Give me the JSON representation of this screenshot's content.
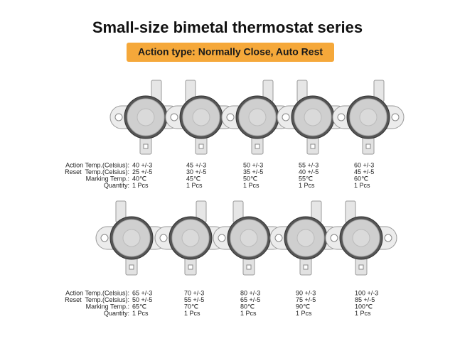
{
  "title": "Small-size bimetal thermostat series",
  "badge": "Action type: Normally Close, Auto Rest",
  "rows": [
    {
      "labels": [
        "Action Temp.(Celsius):",
        "Reset  Temp.(Celsius):",
        "Marking Temp.:",
        "Quantity:"
      ],
      "items": [
        {
          "action": "40 +/-3",
          "reset": "25 +/-5",
          "marking": "40℃",
          "quantity": "1 Pcs"
        },
        {
          "action": "45 +/-3",
          "reset": "30 +/-5",
          "marking": "45℃",
          "quantity": "1 Pcs"
        },
        {
          "action": "50 +/-3",
          "reset": "35 +/-5",
          "marking": "50℃",
          "quantity": "1 Pcs"
        },
        {
          "action": "55 +/-3",
          "reset": "40 +/-5",
          "marking": "55℃",
          "quantity": "1 Pcs"
        },
        {
          "action": "60 +/-3",
          "reset": "45 +/-5",
          "marking": "60℃",
          "quantity": "1 Pcs"
        }
      ]
    },
    {
      "labels": [
        "Action Temp.(Celsius):",
        "Reset  Temp.(Celsius):",
        "Marking Temp.:",
        "Quantity:"
      ],
      "items": [
        {
          "action": "65 +/-3",
          "reset": "50 +/-5",
          "marking": "65℃",
          "quantity": "1 Pcs"
        },
        {
          "action": "70 +/-3",
          "reset": "55 +/-5",
          "marking": "70℃",
          "quantity": "1 Pcs"
        },
        {
          "action": "80 +/-3",
          "reset": "65 +/-5",
          "marking": "80℃",
          "quantity": "1 Pcs"
        },
        {
          "action": "90 +/-3",
          "reset": "75 +/-5",
          "marking": "90℃",
          "quantity": "1 Pcs"
        },
        {
          "action": "100 +/-3",
          "reset": "85 +/-5",
          "marking": "100℃",
          "quantity": "1 Pcs"
        }
      ]
    }
  ]
}
